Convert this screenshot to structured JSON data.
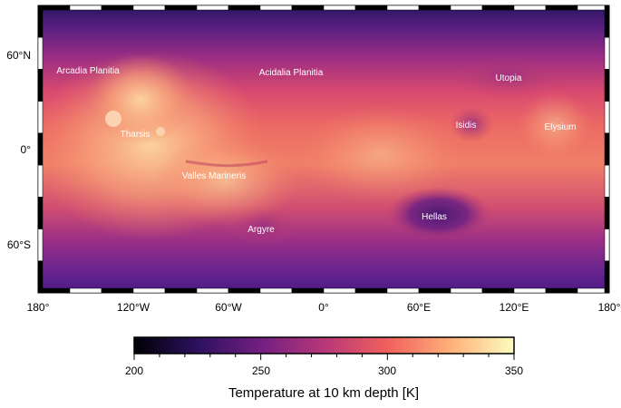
{
  "map": {
    "region_labels": [
      {
        "id": "arcadia",
        "text": "Arcadia Planitia"
      },
      {
        "id": "acidalia",
        "text": "Acidalia Planitia"
      },
      {
        "id": "utopia",
        "text": "Utopia"
      },
      {
        "id": "isidis",
        "text": "Isidis"
      },
      {
        "id": "elysium",
        "text": "Elysium"
      },
      {
        "id": "tharsis",
        "text": "Tharsis"
      },
      {
        "id": "valles",
        "text": "Valles Marineris"
      },
      {
        "id": "hellas",
        "text": "Hellas"
      },
      {
        "id": "argyre",
        "text": "Argyre"
      }
    ],
    "lat_labels": [
      "60°N",
      "0°",
      "60°S"
    ],
    "lon_labels": [
      "180°",
      "120°W",
      "60°W",
      "0°",
      "60°E",
      "120°E",
      "180°"
    ],
    "colormap": [
      "#000004",
      "#2c115f",
      "#721f81",
      "#b73779",
      "#f1605d",
      "#feb078",
      "#fcfdbf"
    ]
  },
  "colorbar": {
    "min": 200,
    "max": 350,
    "tick_labels": [
      "200",
      "250",
      "300",
      "350"
    ],
    "label": "Temperature at 10 km depth [K]"
  }
}
